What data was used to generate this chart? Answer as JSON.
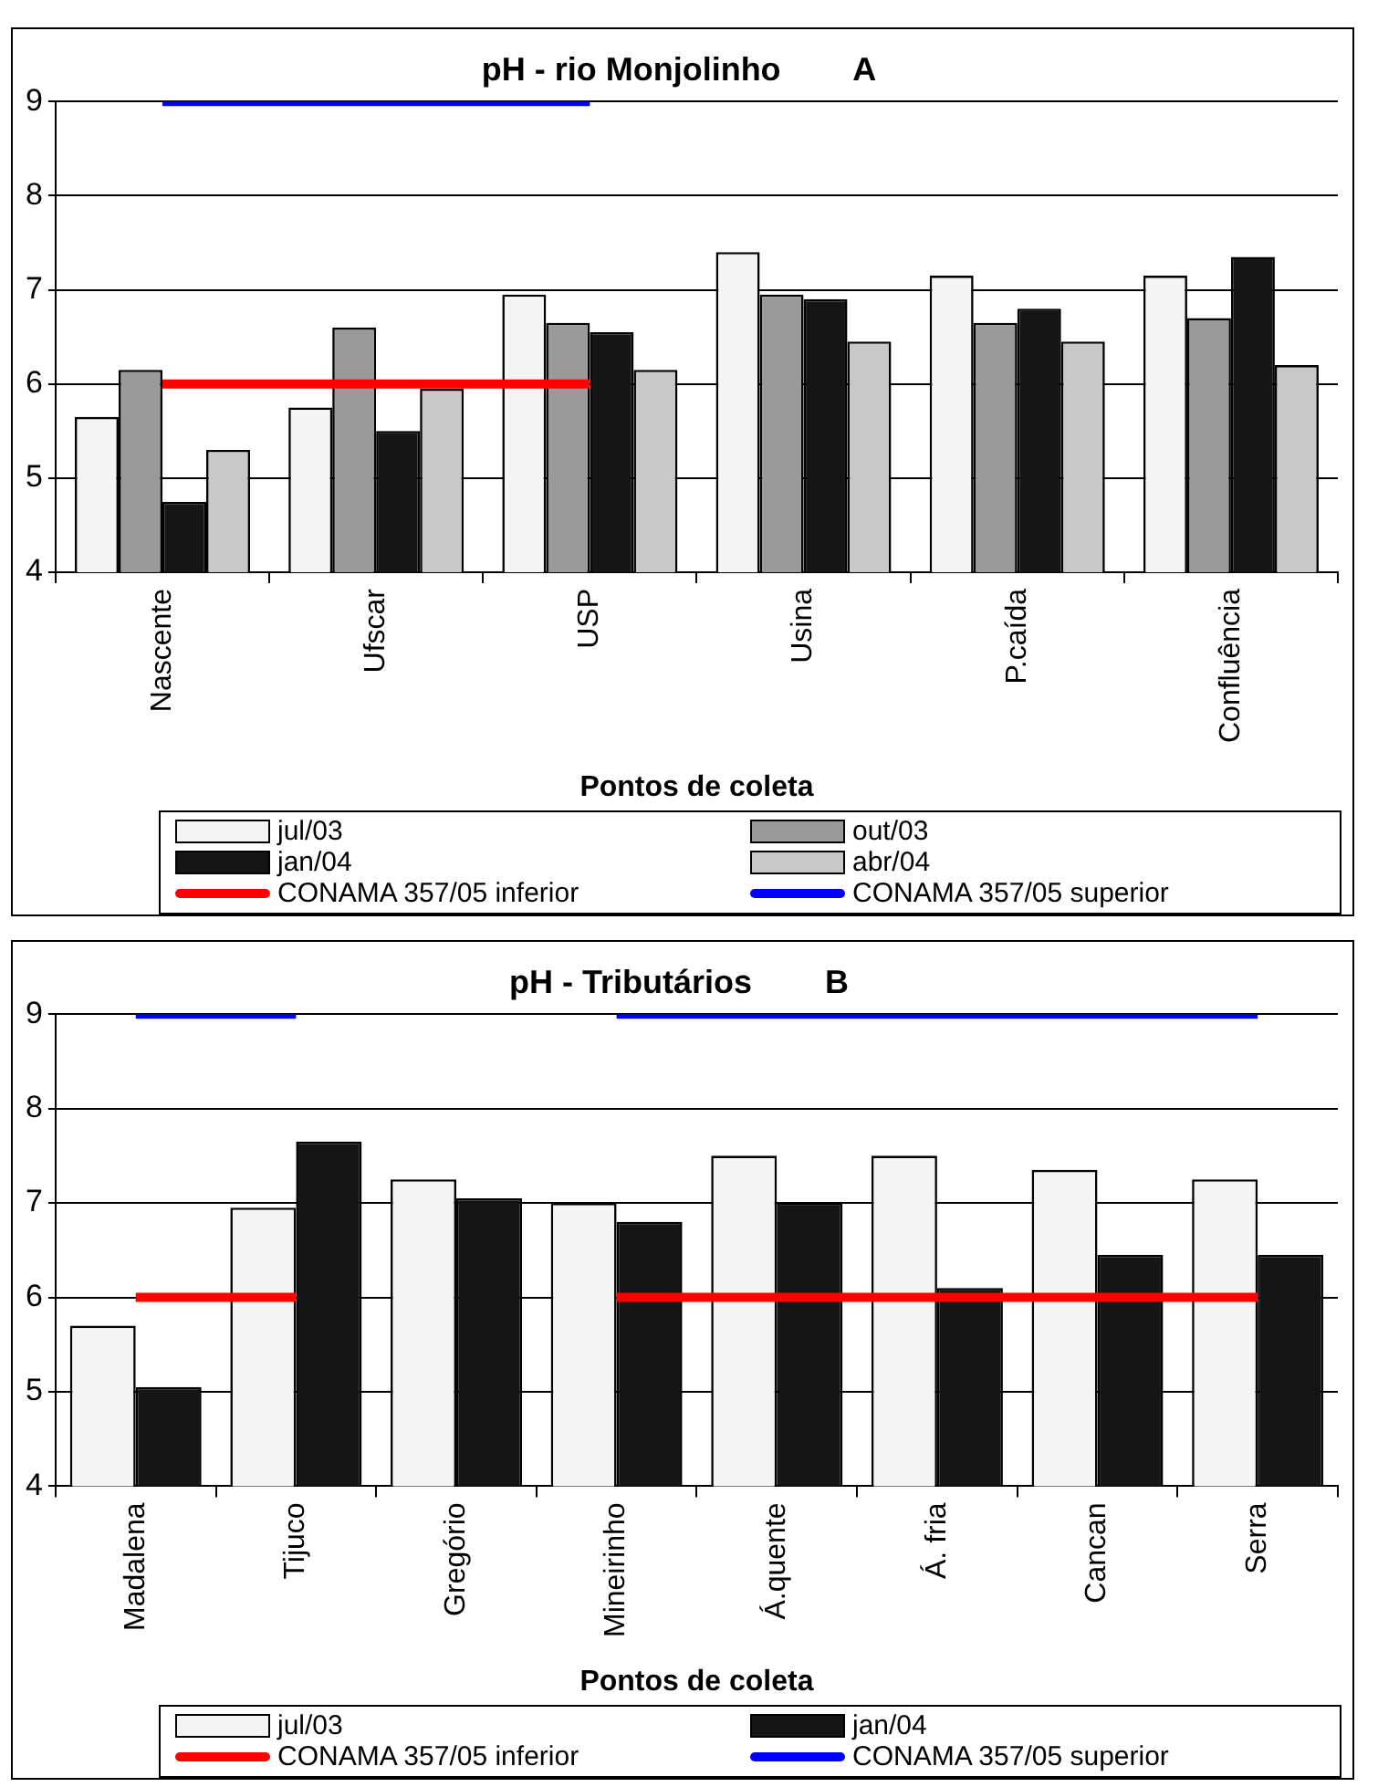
{
  "chart_data": [
    {
      "type": "bar",
      "title": "pH - rio Monjolinho        A",
      "xlabel": "Pontos de coleta",
      "categories": [
        "Nascente",
        "Ufscar",
        "USP",
        "Usina",
        "P.caída",
        "Confluência"
      ],
      "ylim": [
        4,
        9
      ],
      "yticks": [
        4,
        5,
        6,
        7,
        8,
        9
      ],
      "grid": "y",
      "legend": "bottom",
      "series": [
        {
          "name": "jul/03",
          "color": "#f4f4f4",
          "values": [
            5.65,
            5.75,
            6.95,
            7.4,
            7.15,
            7.15
          ]
        },
        {
          "name": "out/03",
          "color": "#9a9a9a",
          "values": [
            6.15,
            6.6,
            6.65,
            6.95,
            6.65,
            6.7
          ]
        },
        {
          "name": "jan/04",
          "color": "#151515",
          "values": [
            4.75,
            5.5,
            6.55,
            6.9,
            6.8,
            7.35
          ]
        },
        {
          "name": "abr/04",
          "color": "#c8c8c8",
          "values": [
            5.3,
            5.95,
            6.15,
            6.45,
            6.45,
            6.2
          ]
        },
        {
          "name": "CONAMA 357/05 inferior",
          "type": "line",
          "color": "#ff0000",
          "values": [
            6,
            6,
            6,
            null,
            null,
            null
          ]
        },
        {
          "name": "CONAMA 357/05 superior",
          "type": "line",
          "color": "#0000ff",
          "values": [
            9,
            9,
            9,
            null,
            null,
            null
          ]
        }
      ]
    },
    {
      "type": "bar",
      "title": "pH - Tributários        B",
      "xlabel": "Pontos de coleta",
      "categories": [
        "Madalena",
        "Tijuco",
        "Gregório",
        "Mineirinho",
        "Á.quente",
        "Á. fria",
        "Cancan",
        "Serra"
      ],
      "ylim": [
        4,
        9
      ],
      "yticks": [
        4,
        5,
        6,
        7,
        8,
        9
      ],
      "grid": "y",
      "legend": "bottom",
      "series": [
        {
          "name": "jul/03",
          "color": "#f4f4f4",
          "values": [
            5.7,
            6.95,
            7.25,
            7.0,
            7.5,
            7.5,
            7.35,
            7.25
          ]
        },
        {
          "name": "jan/04",
          "color": "#151515",
          "values": [
            5.05,
            7.65,
            7.05,
            6.8,
            7.0,
            6.1,
            6.45,
            6.45
          ]
        },
        {
          "name": "CONAMA 357/05 inferior",
          "type": "line",
          "color": "#ff0000",
          "values": [
            6,
            6,
            null,
            6,
            6,
            6,
            6,
            6
          ]
        },
        {
          "name": "CONAMA 357/05 superior",
          "type": "line",
          "color": "#0000ff",
          "values": [
            9,
            9,
            null,
            9,
            9,
            9,
            9,
            9
          ]
        }
      ]
    }
  ]
}
